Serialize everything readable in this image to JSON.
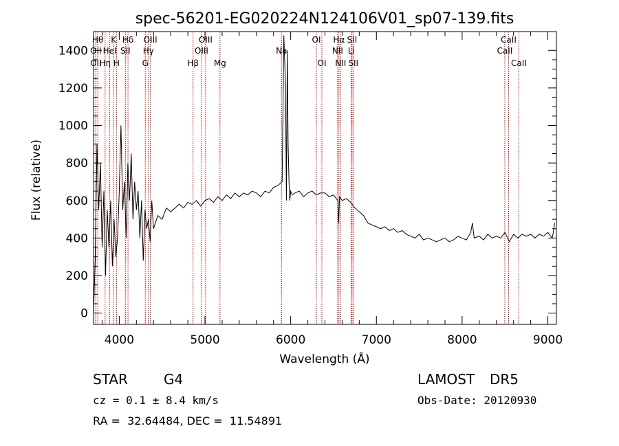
{
  "chart_data": {
    "type": "line",
    "title": "spec-56201-EG020224N124106V01_sp07-139.fits",
    "xlabel": "Wavelength (Å)",
    "ylabel": "Flux (relative)",
    "xlim": [
      3700,
      9100
    ],
    "ylim": [
      -60,
      1500
    ],
    "xticks": [
      4000,
      5000,
      6000,
      7000,
      8000,
      9000
    ],
    "yticks": [
      0,
      200,
      400,
      600,
      800,
      1000,
      1200,
      1400
    ],
    "line_color": "#000000",
    "marker_color": "#cc0000",
    "series": [
      {
        "x": [
          3700,
          3720,
          3740,
          3760,
          3780,
          3800,
          3820,
          3840,
          3860,
          3880,
          3900,
          3920,
          3940,
          3960,
          3980,
          4000,
          4020,
          4040,
          4060,
          4080,
          4100,
          4120,
          4140,
          4160,
          4180,
          4200,
          4220,
          4240,
          4260,
          4280,
          4300,
          4320,
          4340,
          4360,
          4380,
          4400,
          4450,
          4500,
          4550,
          4600,
          4650,
          4700,
          4750,
          4800,
          4850,
          4900,
          4950,
          5000,
          5050,
          5100,
          5150,
          5200,
          5250,
          5300,
          5350,
          5400,
          5450,
          5500,
          5550,
          5600,
          5650,
          5700,
          5750,
          5800,
          5850,
          5900,
          5920,
          5940,
          5950,
          5960,
          5970,
          5980,
          5990,
          6000,
          6020,
          6050,
          6100,
          6150,
          6200,
          6250,
          6300,
          6350,
          6400,
          6450,
          6500,
          6550,
          6560,
          6570,
          6600,
          6650,
          6700,
          6750,
          6800,
          6850,
          6900,
          6950,
          7000,
          7050,
          7100,
          7150,
          7200,
          7250,
          7300,
          7350,
          7400,
          7450,
          7500,
          7550,
          7600,
          7650,
          7700,
          7750,
          7800,
          7850,
          7900,
          7950,
          8000,
          8050,
          8100,
          8120,
          8140,
          8200,
          8250,
          8300,
          8350,
          8400,
          8450,
          8500,
          8550,
          8600,
          8650,
          8700,
          8750,
          8800,
          8850,
          8900,
          8950,
          9000,
          9050,
          9060,
          9080
        ],
        "y": [
          0,
          300,
          900,
          550,
          800,
          350,
          650,
          200,
          550,
          350,
          600,
          250,
          500,
          300,
          400,
          650,
          1000,
          550,
          700,
          400,
          800,
          600,
          850,
          500,
          700,
          550,
          650,
          400,
          600,
          280,
          550,
          450,
          500,
          380,
          600,
          450,
          520,
          500,
          560,
          540,
          560,
          580,
          560,
          590,
          580,
          600,
          570,
          600,
          610,
          590,
          620,
          600,
          630,
          610,
          640,
          620,
          640,
          630,
          650,
          640,
          620,
          650,
          640,
          670,
          680,
          700,
          1480,
          1200,
          600,
          1400,
          900,
          700,
          600,
          650,
          630,
          640,
          650,
          620,
          640,
          650,
          630,
          640,
          640,
          620,
          630,
          600,
          480,
          620,
          600,
          610,
          590,
          560,
          540,
          520,
          480,
          470,
          460,
          450,
          460,
          440,
          450,
          430,
          440,
          420,
          410,
          400,
          420,
          390,
          400,
          390,
          380,
          390,
          400,
          380,
          390,
          410,
          400,
          390,
          430,
          480,
          400,
          410,
          390,
          420,
          400,
          410,
          400,
          430,
          380,
          420,
          400,
          420,
          410,
          420,
          400,
          420,
          410,
          430,
          400,
          420,
          480
        ]
      }
    ],
    "line_markers": [
      {
        "label": "OII",
        "x": 3727,
        "row": 2
      },
      {
        "label": "Hθ",
        "x": 3750,
        "row": 1
      },
      {
        "label": "OII",
        "x": 3727,
        "row": 3
      },
      {
        "label": "Hη",
        "x": 3835,
        "row": 3
      },
      {
        "label": "HeI",
        "x": 3889,
        "row": 2
      },
      {
        "label": "K",
        "x": 3934,
        "row": 1
      },
      {
        "label": "H",
        "x": 3968,
        "row": 3
      },
      {
        "label": "SII",
        "x": 4072,
        "row": 2
      },
      {
        "label": "Hδ",
        "x": 4102,
        "row": 1
      },
      {
        "label": "Hγ",
        "x": 4340,
        "row": 2
      },
      {
        "label": "G",
        "x": 4304,
        "row": 3
      },
      {
        "label": "OIII",
        "x": 4363,
        "row": 1
      },
      {
        "label": "Hβ",
        "x": 4861,
        "row": 3
      },
      {
        "label": "OIII",
        "x": 4959,
        "row": 2
      },
      {
        "label": "OIII",
        "x": 5007,
        "row": 1
      },
      {
        "label": "Mg",
        "x": 5175,
        "row": 3
      },
      {
        "label": "Na",
        "x": 5893,
        "row": 2
      },
      {
        "label": "OI",
        "x": 6300,
        "row": 1
      },
      {
        "label": "OI",
        "x": 6364,
        "row": 3
      },
      {
        "label": "NII",
        "x": 6548,
        "row": 2
      },
      {
        "label": "Hα",
        "x": 6563,
        "row": 1
      },
      {
        "label": "NII",
        "x": 6583,
        "row": 3
      },
      {
        "label": "Li",
        "x": 6708,
        "row": 2
      },
      {
        "label": "SII",
        "x": 6716,
        "row": 1
      },
      {
        "label": "SII",
        "x": 6731,
        "row": 3
      },
      {
        "label": "CaII",
        "x": 8498,
        "row": 2
      },
      {
        "label": "CaII",
        "x": 8542,
        "row": 1
      },
      {
        "label": "CaII",
        "x": 8662,
        "row": 3
      }
    ]
  },
  "info": {
    "class_type": "STAR",
    "subclass": "G4",
    "survey": "LAMOST",
    "release": "DR5",
    "cz_line": "cz = 0.1 ± 8.4 km/s",
    "obs_date": "Obs-Date: 20120930",
    "coords": "RA =  32.64484, DEC =  11.54891"
  }
}
